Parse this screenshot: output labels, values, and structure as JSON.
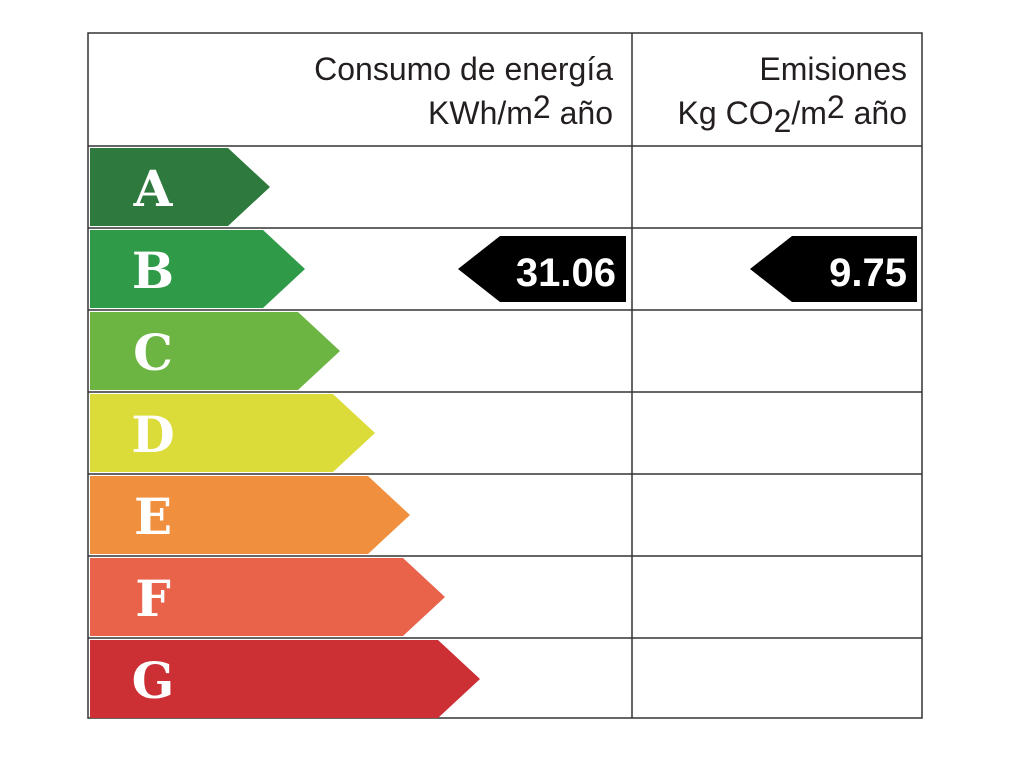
{
  "columns": [
    {
      "title": "Consumo de energía",
      "unit": [
        "KWh/m",
        "2",
        " año"
      ]
    },
    {
      "title": "Emisiones",
      "unit": [
        "Kg CO",
        "2",
        "/m",
        "2",
        " año"
      ]
    }
  ],
  "classes": [
    {
      "letter": "A",
      "color": "#2e7a3e"
    },
    {
      "letter": "B",
      "color": "#2f9a48"
    },
    {
      "letter": "C",
      "color": "#6db543"
    },
    {
      "letter": "D",
      "color": "#dbdc3a"
    },
    {
      "letter": "E",
      "color": "#f0903f"
    },
    {
      "letter": "F",
      "color": "#e8634a"
    },
    {
      "letter": "G",
      "color": "#cc3035"
    }
  ],
  "consumption": 31.06,
  "emissions": 9.75
}
